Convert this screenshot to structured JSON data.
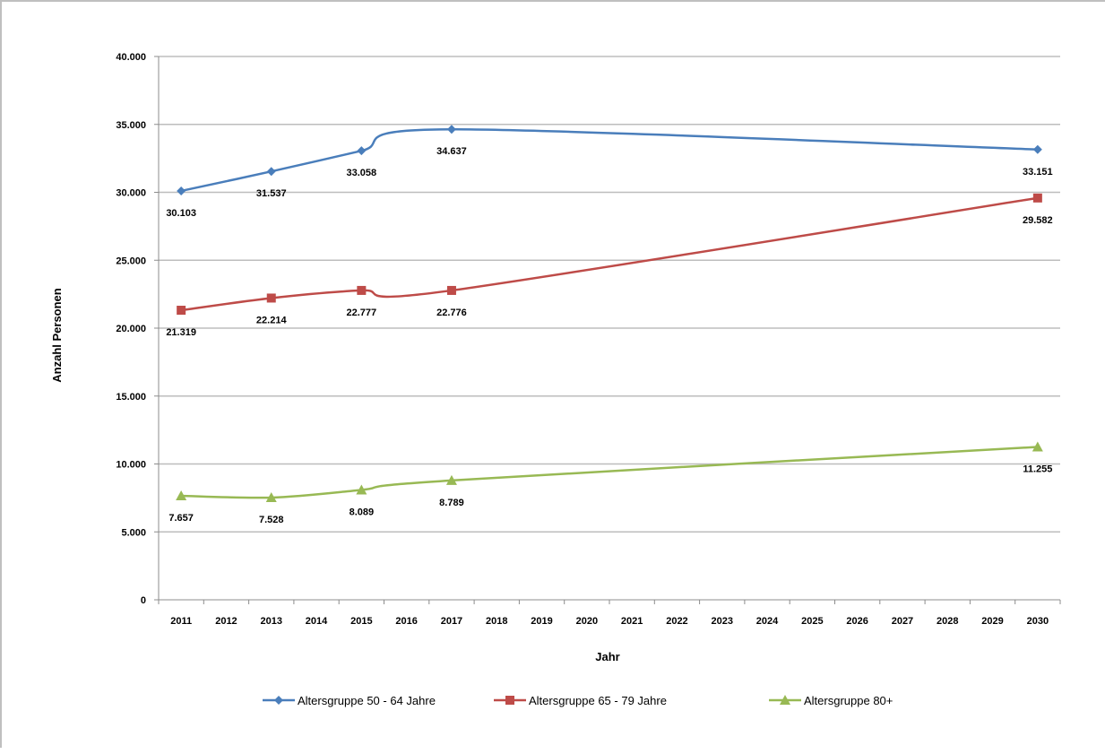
{
  "chart_data": {
    "type": "line",
    "categories": [
      "2011",
      "2012",
      "2013",
      "2014",
      "2015",
      "2016",
      "2017",
      "2018",
      "2019",
      "2020",
      "2021",
      "2022",
      "2023",
      "2024",
      "2025",
      "2026",
      "2027",
      "2028",
      "2029",
      "2030"
    ],
    "y_ticks": [
      "0",
      "5.000",
      "10.000",
      "15.000",
      "20.000",
      "25.000",
      "30.000",
      "35.000",
      "40.000"
    ],
    "ylim": [
      0,
      40000
    ],
    "xlabel": "Jahr",
    "ylabel": "Anzahl Personen",
    "grid": "horizontal",
    "legend_position": "bottom",
    "series": [
      {
        "name": "Altersgruppe 50 - 64 Jahre",
        "color": "#4a7ebb",
        "marker": "diamond",
        "points": [
          {
            "x": "2011",
            "y": 30103,
            "label": "30.103"
          },
          {
            "x": "2013",
            "y": 31537,
            "label": "31.537"
          },
          {
            "x": "2015",
            "y": 33058,
            "label": "33.058"
          },
          {
            "x": "2017",
            "y": 34637,
            "label": "34.637"
          },
          {
            "x": "2030",
            "y": 33151,
            "label": "33.151"
          }
        ]
      },
      {
        "name": "Altersgruppe 65 - 79 Jahre",
        "color": "#be4b48",
        "marker": "square",
        "points": [
          {
            "x": "2011",
            "y": 21319,
            "label": "21.319"
          },
          {
            "x": "2013",
            "y": 22214,
            "label": "22.214"
          },
          {
            "x": "2015",
            "y": 22777,
            "label": "22.777"
          },
          {
            "x": "2017",
            "y": 22776,
            "label": "22.776"
          },
          {
            "x": "2030",
            "y": 29582,
            "label": "29.582"
          }
        ]
      },
      {
        "name": "Altersgruppe 80+",
        "color": "#98b954",
        "marker": "triangle",
        "points": [
          {
            "x": "2011",
            "y": 7657,
            "label": "7.657"
          },
          {
            "x": "2013",
            "y": 7528,
            "label": "7.528"
          },
          {
            "x": "2015",
            "y": 8089,
            "label": "8.089"
          },
          {
            "x": "2017",
            "y": 8789,
            "label": "8.789"
          },
          {
            "x": "2030",
            "y": 11255,
            "label": "11.255"
          }
        ]
      }
    ]
  }
}
